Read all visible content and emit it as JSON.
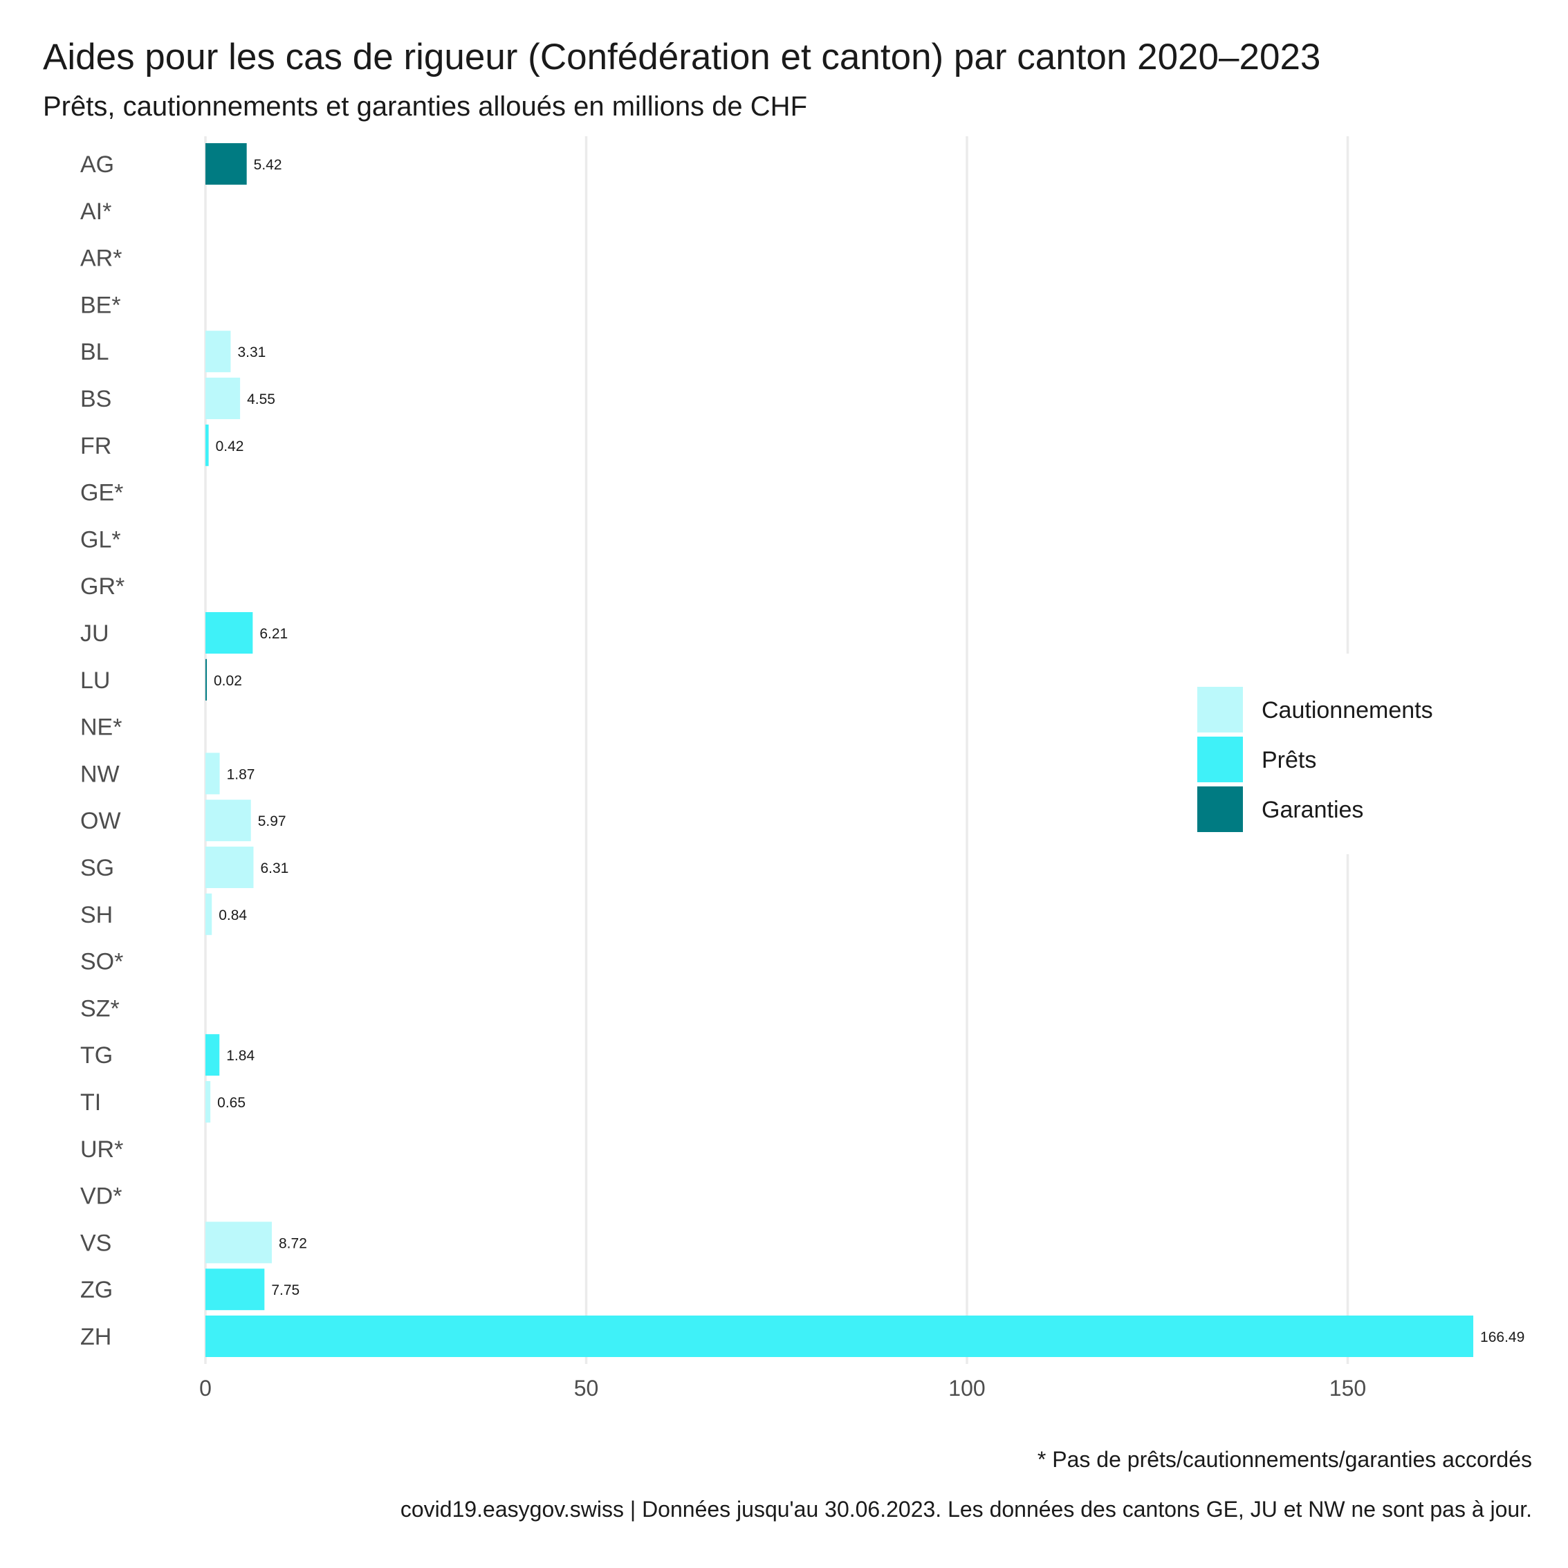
{
  "title": "Aides pour les cas de rigueur (Confédération et canton) par canton 2020–2023",
  "subtitle": "Prêts, cautionnements et garanties alloués en millions de CHF",
  "caption_note": "* Pas de prêts/cautionnements/garanties accordés",
  "caption_source": "covid19.easygov.swiss | Données jusqu'au 30.06.2023. Les données des cantons GE, JU et NW ne sont pas à jour.",
  "chart_data": {
    "type": "bar",
    "orientation": "horizontal",
    "xlim": [
      0,
      170
    ],
    "x_ticks": [
      0,
      50,
      100,
      150
    ],
    "grid": true,
    "legend_position": "right",
    "colors": {
      "Cautionnements": "#bbf9fb",
      "Prêts": "#3ff1f8",
      "Garanties": "#007b82"
    },
    "legend": [
      "Cautionnements",
      "Prêts",
      "Garanties"
    ],
    "categories": [
      "AG",
      "AI*",
      "AR*",
      "BE*",
      "BL",
      "BS",
      "FR",
      "GE*",
      "GL*",
      "GR*",
      "JU",
      "LU",
      "NE*",
      "NW",
      "OW",
      "SG",
      "SH",
      "SO*",
      "SZ*",
      "TG",
      "TI",
      "UR*",
      "VD*",
      "VS",
      "ZG",
      "ZH"
    ],
    "bars": [
      {
        "category": "AG",
        "type": "Garanties",
        "value": 5.42,
        "label": "5.42"
      },
      {
        "category": "BL",
        "type": "Cautionnements",
        "value": 3.31,
        "label": "3.31"
      },
      {
        "category": "BS",
        "type": "Cautionnements",
        "value": 4.55,
        "label": "4.55"
      },
      {
        "category": "FR",
        "type": "Prêts",
        "value": 0.42,
        "label": "0.42"
      },
      {
        "category": "JU",
        "type": "Prêts",
        "value": 6.21,
        "label": "6.21"
      },
      {
        "category": "LU",
        "type": "Garanties",
        "value": 0.02,
        "label": "0.02"
      },
      {
        "category": "NW",
        "type": "Cautionnements",
        "value": 1.87,
        "label": "1.87"
      },
      {
        "category": "OW",
        "type": "Cautionnements",
        "value": 5.97,
        "label": "5.97"
      },
      {
        "category": "SG",
        "type": "Cautionnements",
        "value": 6.31,
        "label": "6.31"
      },
      {
        "category": "SH",
        "type": "Cautionnements",
        "value": 0.84,
        "label": "0.84"
      },
      {
        "category": "TG",
        "type": "Prêts",
        "value": 1.84,
        "label": "1.84"
      },
      {
        "category": "TI",
        "type": "Cautionnements",
        "value": 0.65,
        "label": "0.65"
      },
      {
        "category": "VS",
        "type": "Cautionnements",
        "value": 8.72,
        "label": "8.72"
      },
      {
        "category": "ZG",
        "type": "Prêts",
        "value": 7.75,
        "label": "7.75"
      },
      {
        "category": "ZH",
        "type": "Prêts",
        "value": 166.49,
        "label": "166.49"
      }
    ]
  }
}
